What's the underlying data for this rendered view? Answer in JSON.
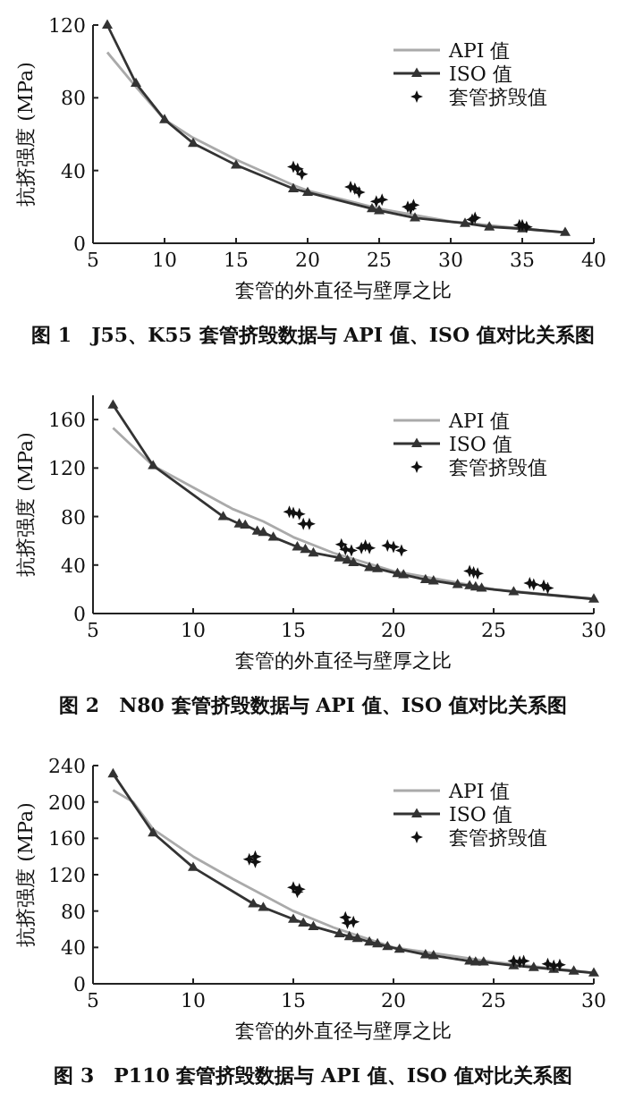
{
  "chart_data": [
    {
      "type": "line",
      "title": "图 1　J55、K55 套管挤毁数据与 API 值、ISO 值对比关系图",
      "xlabel": "套管的外直径与壁厚之比",
      "ylabel": "抗挤强度 (MPa)",
      "xlim": [
        5,
        40
      ],
      "xticks": [
        5,
        10,
        15,
        20,
        25,
        30,
        35,
        40
      ],
      "ylim": [
        0,
        120
      ],
      "yticks": [
        0,
        40,
        80,
        120
      ],
      "legend": "top right",
      "series": [
        {
          "name": "API 值",
          "color": "#aaaaaa",
          "type": "line",
          "marker": "none",
          "x": [
            6,
            8,
            10,
            12,
            15,
            19,
            20,
            25,
            30,
            35,
            38
          ],
          "values": [
            105,
            86,
            68,
            58,
            46,
            32,
            29,
            19,
            12,
            8,
            6
          ]
        },
        {
          "name": "ISO 值",
          "color": "#333333",
          "type": "line",
          "marker": "triangle",
          "x": [
            6,
            8,
            10,
            12,
            15,
            19,
            20,
            24.5,
            25,
            27.5,
            31,
            32.7,
            35,
            38
          ],
          "values": [
            120,
            88,
            68,
            55,
            43,
            30,
            28,
            19,
            18,
            14,
            11,
            9,
            8,
            6
          ]
        },
        {
          "name": "套管挤毁值",
          "color": "#111111",
          "type": "scatter",
          "marker": "star",
          "x": [
            19,
            19.3,
            19.6,
            23,
            23.3,
            23.6,
            24.8,
            25.2,
            27,
            27.4,
            27.2,
            31.5,
            31.7,
            34.8,
            35,
            35.3
          ],
          "values": [
            42,
            41,
            38,
            31,
            30,
            28,
            23,
            24,
            20,
            21,
            19,
            13,
            14,
            10,
            10,
            9
          ]
        }
      ]
    },
    {
      "type": "line",
      "title": "图 2　N80 套管挤毁数据与 API 值、ISO 值对比关系图",
      "xlabel": "套管的外直径与壁厚之比",
      "ylabel": "抗挤强度 (MPa)",
      "xlim": [
        5,
        30
      ],
      "xticks": [
        5,
        10,
        15,
        20,
        25,
        30
      ],
      "ylim": [
        0,
        180
      ],
      "yticks": [
        0,
        40,
        80,
        120,
        160
      ],
      "legend": "top right",
      "series": [
        {
          "name": "API 值",
          "color": "#aaaaaa",
          "type": "line",
          "marker": "none",
          "x": [
            6,
            8,
            10,
            12,
            13.5,
            15,
            17,
            20,
            25,
            30
          ],
          "values": [
            153,
            122,
            104,
            86,
            76,
            63,
            50,
            35,
            20,
            12
          ]
        },
        {
          "name": "ISO 值",
          "color": "#333333",
          "type": "line",
          "marker": "triangle",
          "x": [
            6,
            8,
            11.5,
            12.3,
            12.6,
            13.2,
            13.5,
            14,
            15.2,
            15.6,
            16,
            17.3,
            17.7,
            18,
            18.8,
            19.2,
            20.2,
            20.5,
            21.6,
            22,
            23.2,
            23.8,
            24.1,
            24.4,
            26,
            30
          ],
          "values": [
            172,
            122,
            80,
            74,
            73,
            68,
            67,
            63,
            55,
            53,
            50,
            46,
            44,
            42,
            38,
            37,
            33,
            32,
            28,
            27,
            24,
            23,
            22,
            21,
            18,
            12
          ]
        },
        {
          "name": "套管挤毁值",
          "color": "#111111",
          "type": "scatter",
          "marker": "star",
          "x": [
            14.8,
            15,
            15.3,
            15.5,
            15.8,
            17.4,
            17.6,
            17.9,
            18.4,
            18.6,
            18.8,
            19.7,
            20,
            20.4,
            23.8,
            24,
            24.2,
            26.8,
            27,
            27.5,
            27.7
          ],
          "values": [
            84,
            83,
            82,
            74,
            74,
            57,
            53,
            52,
            54,
            56,
            54,
            56,
            55,
            52,
            35,
            34,
            33,
            25,
            24,
            23,
            21
          ]
        }
      ]
    },
    {
      "type": "line",
      "title": "图 3　P110 套管挤毁数据与 API 值、ISO 值对比关系图",
      "xlabel": "套管的外直径与壁厚之比",
      "ylabel": "抗挤强度 (MPa)",
      "xlim": [
        5,
        30
      ],
      "xticks": [
        5,
        10,
        15,
        20,
        25,
        30
      ],
      "ylim": [
        0,
        240
      ],
      "yticks": [
        0,
        40,
        80,
        120,
        160,
        200,
        240
      ],
      "legend": "top right",
      "series": [
        {
          "name": "API 值",
          "color": "#aaaaaa",
          "type": "line",
          "marker": "none",
          "x": [
            6,
            7,
            8,
            10,
            12,
            15,
            17,
            20,
            25,
            30
          ],
          "values": [
            213,
            200,
            170,
            140,
            115,
            80,
            62,
            40,
            24,
            12
          ]
        },
        {
          "name": "ISO 值",
          "color": "#333333",
          "type": "line",
          "marker": "triangle",
          "x": [
            6,
            8,
            10,
            13,
            13.5,
            15,
            15.5,
            16,
            17.3,
            17.8,
            18.2,
            18.8,
            19.2,
            19.7,
            20.3,
            21.6,
            22,
            23.8,
            24.1,
            24.5,
            26,
            27,
            28,
            29,
            30
          ],
          "values": [
            231,
            166,
            128,
            88,
            84,
            71,
            67,
            63,
            55,
            52,
            50,
            46,
            44,
            41,
            38,
            32,
            31,
            25,
            24,
            24,
            20,
            18,
            16,
            14,
            12
          ]
        },
        {
          "name": "套管挤毁值",
          "color": "#111111",
          "type": "scatter",
          "marker": "star",
          "x": [
            12.8,
            13.1,
            13.1,
            15,
            15.2,
            15.3,
            17.6,
            17.7,
            18,
            26,
            26.3,
            26.5,
            27.7,
            28,
            28.3
          ],
          "values": [
            137,
            140,
            134,
            106,
            101,
            104,
            73,
            67,
            68,
            25,
            24,
            25,
            22,
            20,
            21
          ]
        }
      ]
    }
  ]
}
